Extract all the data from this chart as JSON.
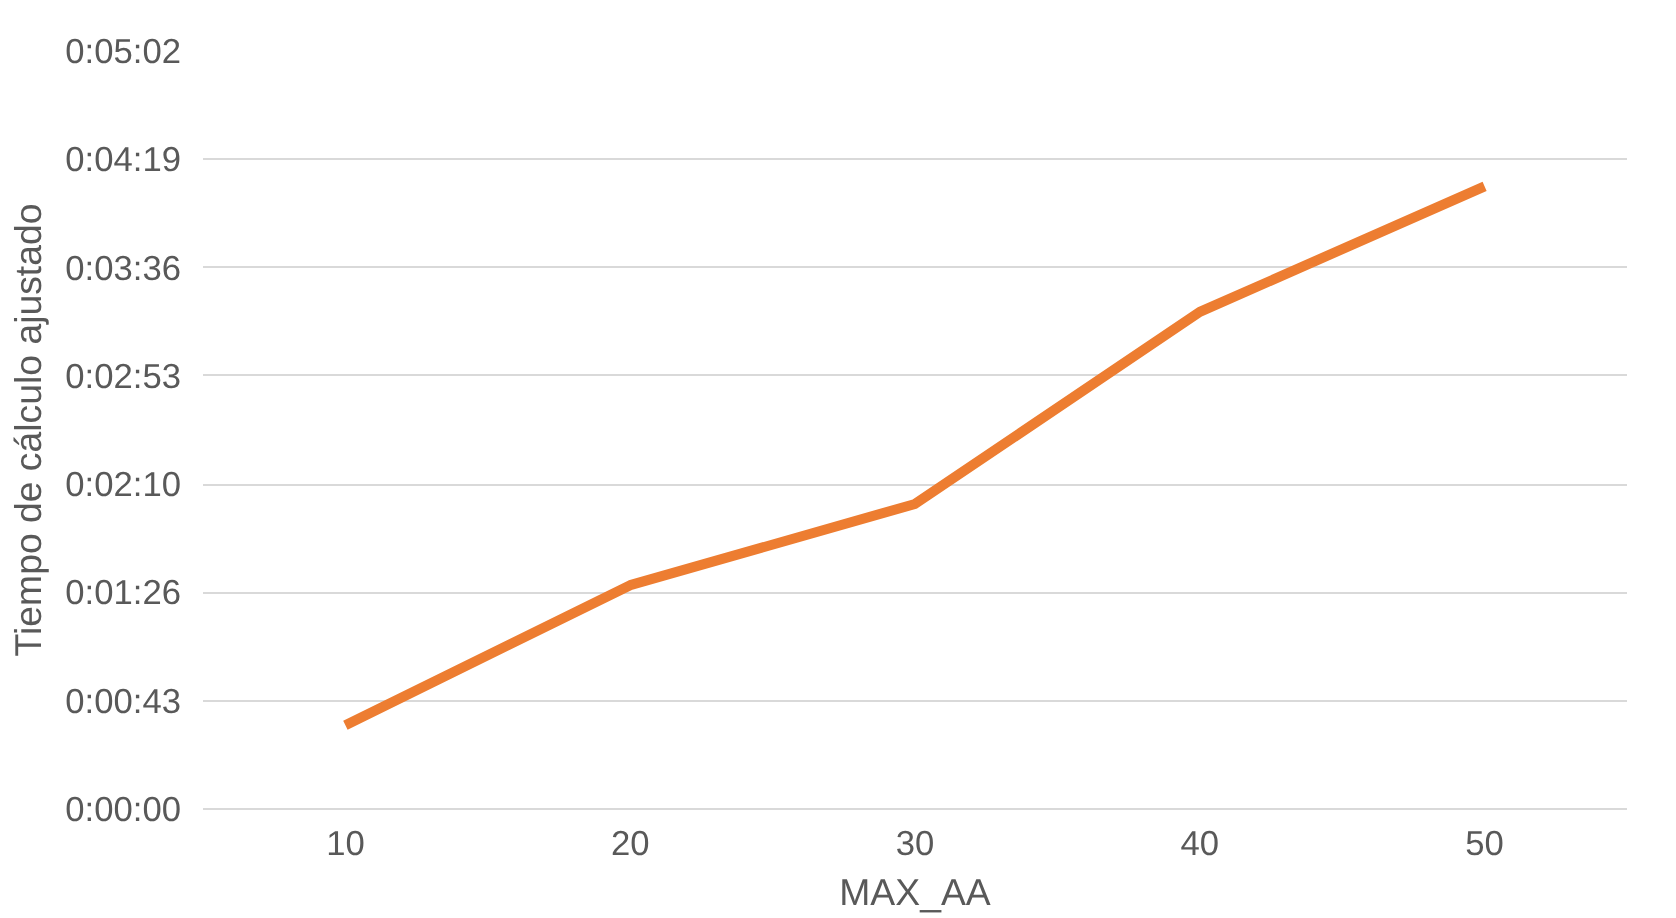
{
  "chart_data": {
    "type": "line",
    "xlabel": "MAX_AA",
    "ylabel": "Tiempo de cálculo ajustado",
    "categories": [
      "10",
      "20",
      "30",
      "40",
      "50"
    ],
    "series": [
      {
        "color": "#ed7d31",
        "values": [
          33.4,
          89.3,
          121.7,
          198.3,
          248.4
        ]
      }
    ],
    "ylim": [
      0,
      302.4
    ],
    "yticks": [
      {
        "value": 0,
        "label": "0:00:00"
      },
      {
        "value": 43.2,
        "label": "0:00:43"
      },
      {
        "value": 86.4,
        "label": "0:01:26"
      },
      {
        "value": 129.6,
        "label": "0:02:10"
      },
      {
        "value": 172.8,
        "label": "0:02:53"
      },
      {
        "value": 216,
        "label": "0:03:36"
      },
      {
        "value": 259.2,
        "label": "0:04:19"
      },
      {
        "value": 302.4,
        "label": "0:05:02"
      }
    ],
    "grid": "y",
    "marker": "none",
    "line_style": "solid"
  }
}
